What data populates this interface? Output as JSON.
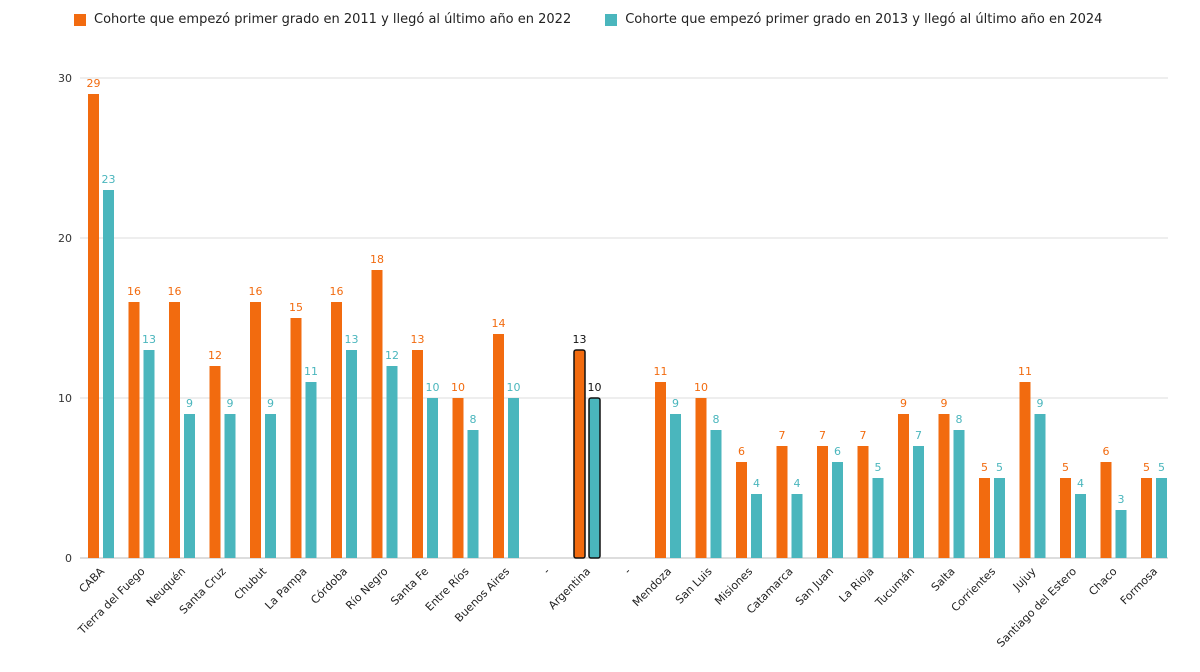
{
  "colors": {
    "series1": "#f26b0f",
    "series2": "#4ab6bd",
    "highlight_label": "#111111",
    "grid": "#dddddd"
  },
  "chart_data": {
    "type": "bar",
    "legend_position": "top-left",
    "grid": true,
    "ylim": [
      0,
      30
    ],
    "yticks": [
      0,
      10,
      20,
      30
    ],
    "categories": [
      "CABA",
      "Tierra del Fuego",
      "Neuquén",
      "Santa Cruz",
      "Chubut",
      "La Pampa",
      "Córdoba",
      "Río Negro",
      "Santa Fe",
      "Entre Ríos",
      "Buenos Aires",
      "-",
      "Argentina",
      "-",
      "Mendoza",
      "San Luis",
      "Misiones",
      "Catamarca",
      "San Juan",
      "La Rioja",
      "Tucumán",
      "Salta",
      "Corrientes",
      "Jujuy",
      "Santiago del Estero",
      "Chaco",
      "Formosa"
    ],
    "highlight_category": "Argentina",
    "series": [
      {
        "name": "Cohorte que empezó primer grado en 2011 y llegó al último año en 2022",
        "values": [
          29,
          16,
          16,
          12,
          16,
          15,
          16,
          18,
          13,
          10,
          14,
          null,
          13,
          null,
          11,
          10,
          6,
          7,
          7,
          7,
          9,
          9,
          5,
          11,
          5,
          6,
          5
        ]
      },
      {
        "name": "Cohorte que empezó primer grado en 2013 y llegó al último año en 2024",
        "values": [
          23,
          13,
          9,
          9,
          9,
          11,
          13,
          12,
          10,
          8,
          10,
          null,
          10,
          null,
          9,
          8,
          4,
          4,
          6,
          5,
          7,
          8,
          5,
          9,
          4,
          3,
          5
        ]
      }
    ]
  }
}
